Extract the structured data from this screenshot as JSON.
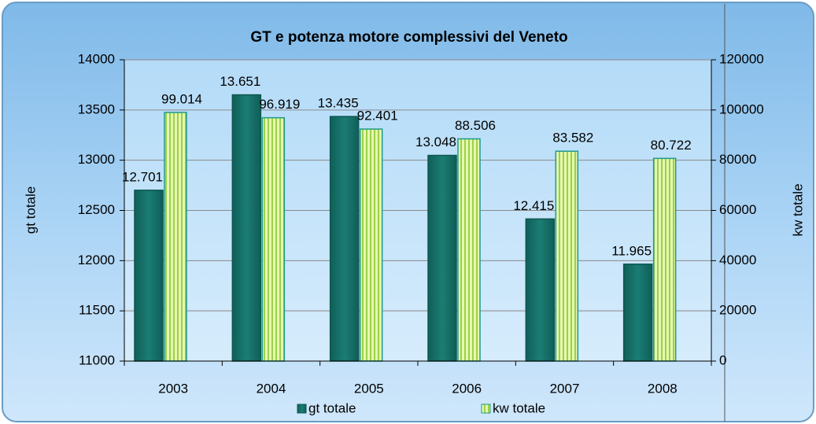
{
  "chart_data": {
    "type": "bar",
    "title": "GT e potenza motore complessivi del Veneto",
    "y_label": "gt totale",
    "y2_label": "kw totale",
    "categories": [
      "2003",
      "2004",
      "2005",
      "2006",
      "2007",
      "2008"
    ],
    "series": [
      {
        "name": "gt totale",
        "color": "#1b7d74",
        "values": [
          12701,
          13651,
          13435,
          13048,
          12415,
          11965
        ],
        "value_labels": [
          "12.701",
          "13.651",
          "13.435",
          "13.048",
          "12.415",
          "11.965"
        ]
      },
      {
        "name": "kw totale",
        "color": "#c8ec7e",
        "axis": "y2",
        "values": [
          99014,
          96919,
          92401,
          88506,
          83582,
          80722
        ],
        "value_labels": [
          "99.014",
          "96.919",
          "92.401",
          "88.506",
          "83.582",
          "80.722"
        ]
      }
    ],
    "ylim": [
      11000,
      14000
    ],
    "yticks": [
      11000,
      11500,
      12000,
      12500,
      13000,
      13500,
      14000
    ],
    "y2lim": [
      0,
      120000
    ],
    "y2ticks": [
      0,
      20000,
      40000,
      60000,
      80000,
      100000,
      120000
    ],
    "grid": true,
    "legend": "bottom"
  }
}
